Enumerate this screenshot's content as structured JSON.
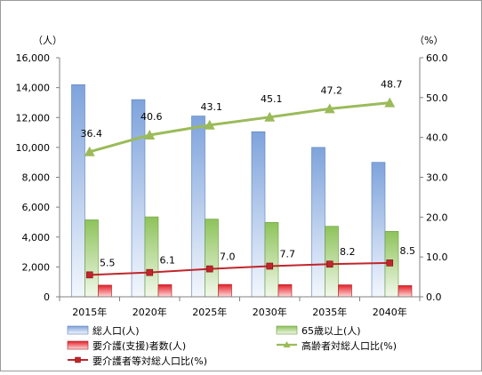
{
  "chart_data": {
    "type": "bar",
    "categories": [
      "2015年",
      "2020年",
      "2025年",
      "2030年",
      "2035年",
      "2040年"
    ],
    "y_left": {
      "unit": "（人）",
      "ylim": [
        0,
        16000
      ],
      "ticks": [
        "0",
        "2,000",
        "4,000",
        "6,000",
        "8,000",
        "10,000",
        "12,000",
        "14,000",
        "16,000"
      ]
    },
    "y_right": {
      "unit": "（%）",
      "ylim": [
        0,
        60
      ],
      "ticks": [
        "0.0",
        "10.0",
        "20.0",
        "30.0",
        "40.0",
        "50.0",
        "60.0"
      ]
    },
    "series": [
      {
        "name": "総人口(人)",
        "kind": "bar",
        "axis": "left",
        "color": "#7ba1d9",
        "values": [
          14200,
          13200,
          12100,
          11050,
          10000,
          9000
        ]
      },
      {
        "name": "65歳以上(人)",
        "kind": "bar",
        "axis": "left",
        "color": "#8fc45c",
        "values": [
          5150,
          5350,
          5200,
          4980,
          4720,
          4380
        ]
      },
      {
        "name": "要介護(支援)者数(人)",
        "kind": "bar",
        "axis": "left",
        "color": "#e8202a",
        "values": [
          780,
          810,
          830,
          820,
          800,
          750
        ]
      },
      {
        "name": "高齢者対総人口比(%)",
        "kind": "line",
        "axis": "right",
        "color": "#9bbb59",
        "marker": "triangle",
        "values": [
          36.4,
          40.6,
          43.1,
          45.1,
          47.2,
          48.7
        ],
        "labels": [
          "36.4",
          "40.6",
          "43.1",
          "45.1",
          "47.2",
          "48.7"
        ]
      },
      {
        "name": "要介護者等対総人口比(%)",
        "kind": "line",
        "axis": "right",
        "color": "#c0262b",
        "marker": "square",
        "values": [
          5.5,
          6.1,
          7.0,
          7.7,
          8.2,
          8.5
        ],
        "labels": [
          "5.5",
          "6.1",
          "7.0",
          "7.7",
          "8.2",
          "8.5"
        ]
      }
    ],
    "grid": false,
    "legend_position": "bottom"
  }
}
